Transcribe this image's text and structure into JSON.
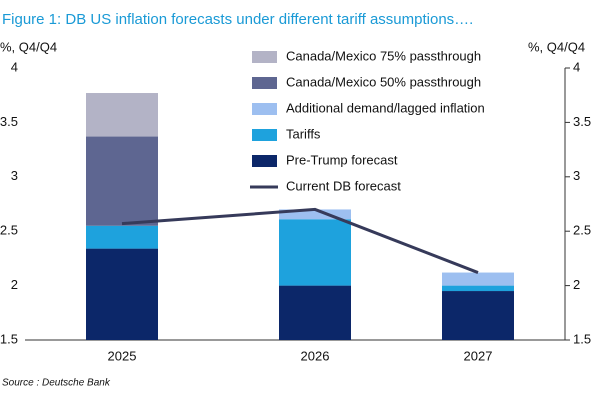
{
  "chart_data": {
    "type": "bar",
    "title": "Figure 1: DB US inflation forecasts under different tariff assumptions….",
    "ylabel": "%, Q4/Q4",
    "y2label": "%, Q4/Q4",
    "source": "Source : Deutsche Bank",
    "stacked": true,
    "categories": [
      "2025",
      "2026",
      "2027"
    ],
    "series": [
      {
        "name": "Pre-Trump forecast",
        "color": "#0c2769",
        "values": [
          2.34,
          2.0,
          1.95
        ]
      },
      {
        "name": "Tariffs",
        "color": "#1ea2dd",
        "values": [
          0.21,
          0.61,
          0.05
        ]
      },
      {
        "name": "Additional demand/lagged inflation",
        "color": "#9dbff0",
        "values": [
          0.0,
          0.09,
          0.12
        ]
      },
      {
        "name": "Canada/Mexico 50% passthrough",
        "color": "#5e6691",
        "values": [
          0.82,
          0.0,
          0.0
        ]
      },
      {
        "name": "Canada/Mexico 75% passthrough",
        "color": "#b3b3c6",
        "values": [
          0.4,
          0.0,
          0.0
        ]
      },
      {
        "name": "Current DB forecast",
        "color": "#363a5a",
        "type": "line",
        "values": [
          2.57,
          2.7,
          2.12
        ]
      }
    ],
    "ylim": [
      1.5,
      4
    ],
    "yticks": [
      1.5,
      2,
      2.5,
      3,
      3.5,
      4
    ],
    "y2lim": [
      1.5,
      4
    ],
    "y2ticks": [
      1.5,
      2,
      2.5,
      3,
      3.5,
      4
    ],
    "grid": false
  }
}
